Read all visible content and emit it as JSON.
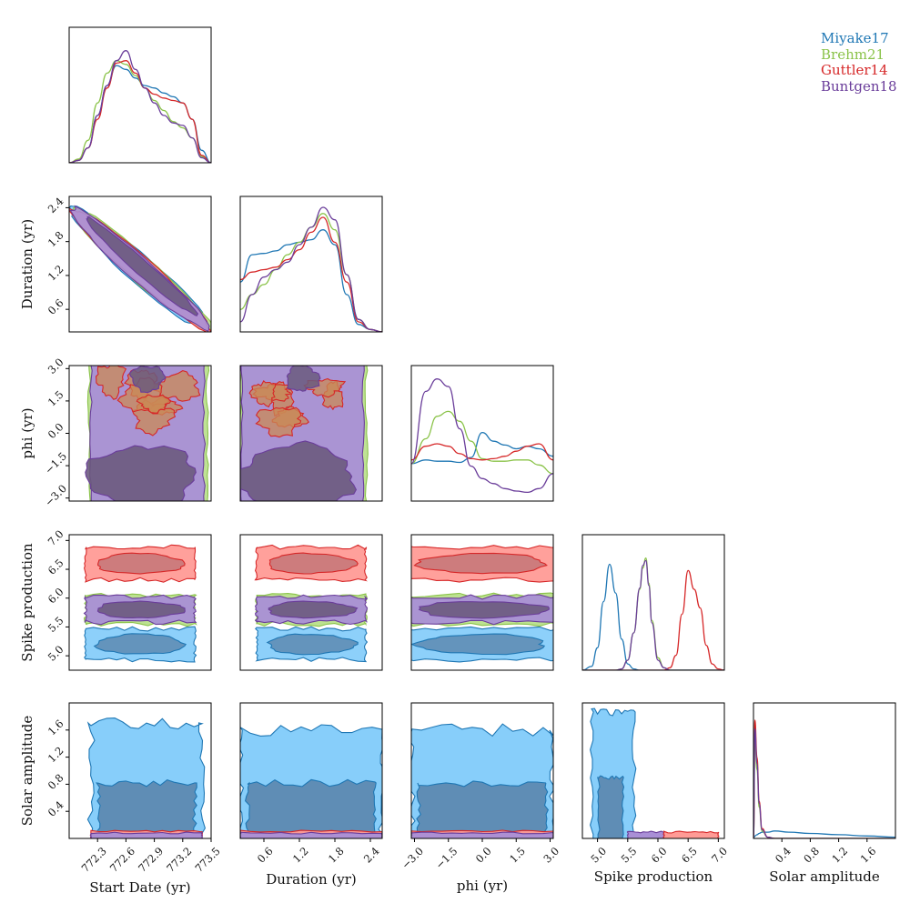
{
  "colors": {
    "Miyake17": "#1f77b4",
    "Brehm21": "#8bc34a",
    "Guttler14": "#d62728",
    "Buntgen18": "#6a3d9a",
    "fill_Miyake17_outer": "#87cefa",
    "fill_Miyake17_inner": "#5f8db5",
    "fill_Brehm21_outer": "#b8df8a",
    "fill_Guttler14_outer": "#ff9b96",
    "fill_Guttler14_inner": "#c8787a",
    "fill_Buntgen18_outer": "#a98fd6",
    "fill_Buntgen18_inner": "#6b5a7e",
    "orange_overlap": "#c98a55"
  },
  "chart_data": {
    "type": "corner",
    "parameters": [
      {
        "key": "start",
        "label": "Start Date (yr)",
        "range": [
          772.0,
          773.5
        ],
        "ticks": [
          "772.3",
          "772.6",
          "772.9",
          "773.2",
          "773.5"
        ],
        "tick_values": [
          772.3,
          772.6,
          772.9,
          773.2,
          773.5
        ]
      },
      {
        "key": "duration",
        "label": "Duration (yr)",
        "range": [
          0.2,
          2.6
        ],
        "ticks": [
          "0.6",
          "1.2",
          "1.8",
          "2.4"
        ],
        "tick_values": [
          0.6,
          1.2,
          1.8,
          2.4
        ]
      },
      {
        "key": "phi",
        "label": "phi (yr)",
        "range": [
          -3.14,
          3.14
        ],
        "ticks": [
          "−3.0",
          "−1.5",
          "0.0",
          "1.5",
          "3.0"
        ],
        "tick_values": [
          -3.0,
          -1.5,
          0.0,
          1.5,
          3.0
        ]
      },
      {
        "key": "spike",
        "label": "Spike production",
        "range": [
          4.75,
          7.1
        ],
        "ticks": [
          "5.0",
          "5.5",
          "6.0",
          "6.5",
          "7.0"
        ],
        "tick_values": [
          5.0,
          5.5,
          6.0,
          6.5,
          7.0
        ]
      },
      {
        "key": "solar",
        "label": "Solar amplitude",
        "range": [
          0.0,
          2.0
        ],
        "ticks": [
          "0.4",
          "0.8",
          "1.2",
          "1.6"
        ],
        "tick_values": [
          0.4,
          0.8,
          1.2,
          1.6
        ]
      }
    ],
    "series": [
      {
        "name": "Miyake17"
      },
      {
        "name": "Brehm21"
      },
      {
        "name": "Guttler14"
      },
      {
        "name": "Buntgen18"
      }
    ],
    "marginals": {
      "start": {
        "x": [
          772.0,
          772.1,
          772.2,
          772.3,
          772.4,
          772.5,
          772.6,
          772.7,
          772.8,
          772.9,
          773.0,
          773.1,
          773.2,
          773.3,
          773.4,
          773.5
        ],
        "Miyake17": [
          0.0,
          0.02,
          0.12,
          0.38,
          0.62,
          0.78,
          0.75,
          0.68,
          0.62,
          0.6,
          0.56,
          0.53,
          0.48,
          0.35,
          0.1,
          0.0
        ],
        "Brehm21": [
          0.0,
          0.03,
          0.18,
          0.48,
          0.72,
          0.82,
          0.79,
          0.7,
          0.6,
          0.5,
          0.42,
          0.33,
          0.28,
          0.2,
          0.05,
          0.0
        ],
        "Guttler14": [
          0.0,
          0.02,
          0.12,
          0.35,
          0.6,
          0.8,
          0.82,
          0.72,
          0.6,
          0.55,
          0.52,
          0.5,
          0.48,
          0.35,
          0.06,
          0.0
        ],
        "Buntgen18": [
          0.0,
          0.02,
          0.12,
          0.38,
          0.62,
          0.82,
          0.9,
          0.75,
          0.6,
          0.48,
          0.38,
          0.32,
          0.3,
          0.2,
          0.04,
          0.0
        ]
      },
      "duration": {
        "x": [
          0.2,
          0.4,
          0.6,
          0.8,
          1.0,
          1.2,
          1.4,
          1.6,
          1.8,
          2.0,
          2.2,
          2.4,
          2.6
        ],
        "Miyake17": [
          0.4,
          0.62,
          0.63,
          0.65,
          0.7,
          0.72,
          0.74,
          0.82,
          0.7,
          0.3,
          0.06,
          0.02,
          0.0
        ],
        "Brehm21": [
          0.18,
          0.3,
          0.38,
          0.5,
          0.62,
          0.72,
          0.84,
          0.95,
          0.82,
          0.46,
          0.1,
          0.02,
          0.0
        ],
        "Guttler14": [
          0.42,
          0.48,
          0.5,
          0.52,
          0.58,
          0.66,
          0.8,
          0.92,
          0.72,
          0.4,
          0.08,
          0.02,
          0.0
        ],
        "Buntgen18": [
          0.08,
          0.3,
          0.44,
          0.5,
          0.56,
          0.7,
          0.84,
          1.0,
          0.9,
          0.46,
          0.1,
          0.02,
          0.0
        ]
      },
      "phi": {
        "x": [
          -3.14,
          -2.5,
          -2.0,
          -1.5,
          -1.0,
          -0.5,
          0.0,
          0.5,
          1.0,
          1.5,
          2.0,
          2.5,
          3.14
        ],
        "Miyake17": [
          0.3,
          0.33,
          0.32,
          0.32,
          0.31,
          0.35,
          0.55,
          0.48,
          0.45,
          0.42,
          0.44,
          0.42,
          0.36
        ],
        "Brehm21": [
          0.3,
          0.5,
          0.68,
          0.72,
          0.64,
          0.48,
          0.34,
          0.32,
          0.32,
          0.33,
          0.33,
          0.29,
          0.22
        ],
        "Guttler14": [
          0.33,
          0.44,
          0.46,
          0.44,
          0.38,
          0.34,
          0.33,
          0.34,
          0.36,
          0.4,
          0.44,
          0.46,
          0.33
        ],
        "Buntgen18": [
          0.3,
          0.88,
          0.98,
          0.92,
          0.58,
          0.28,
          0.18,
          0.14,
          0.1,
          0.08,
          0.07,
          0.1,
          0.22
        ]
      },
      "spike": {
        "x": [
          4.75,
          4.9,
          5.0,
          5.1,
          5.2,
          5.3,
          5.4,
          5.5,
          5.6,
          5.7,
          5.75,
          5.8,
          5.85,
          5.9,
          6.0,
          6.1,
          6.2,
          6.3,
          6.4,
          6.5,
          6.6,
          6.7,
          6.8,
          6.9,
          7.0,
          7.1
        ],
        "Miyake17": [
          0.0,
          0.03,
          0.18,
          0.55,
          0.85,
          0.62,
          0.25,
          0.05,
          0.01,
          0.0,
          0.0,
          0.0,
          0.0,
          0.0,
          0.0,
          0.0,
          0.0,
          0.0,
          0.0,
          0.0,
          0.0,
          0.0,
          0.0,
          0.0,
          0.0,
          0.0
        ],
        "Brehm21": [
          0.0,
          0.0,
          0.0,
          0.0,
          0.0,
          0.0,
          0.01,
          0.08,
          0.3,
          0.65,
          0.82,
          0.9,
          0.7,
          0.4,
          0.1,
          0.02,
          0.0,
          0.0,
          0.0,
          0.0,
          0.0,
          0.0,
          0.0,
          0.0,
          0.0,
          0.0
        ],
        "Guttler14": [
          0.0,
          0.0,
          0.0,
          0.0,
          0.0,
          0.0,
          0.0,
          0.0,
          0.0,
          0.0,
          0.0,
          0.0,
          0.0,
          0.0,
          0.0,
          0.0,
          0.02,
          0.12,
          0.45,
          0.8,
          0.65,
          0.5,
          0.2,
          0.05,
          0.01,
          0.0
        ],
        "Buntgen18": [
          0.0,
          0.0,
          0.0,
          0.0,
          0.0,
          0.0,
          0.01,
          0.08,
          0.3,
          0.66,
          0.84,
          0.88,
          0.68,
          0.38,
          0.08,
          0.02,
          0.0,
          0.0,
          0.0,
          0.0,
          0.0,
          0.0,
          0.0,
          0.0,
          0.0,
          0.0
        ]
      },
      "solar": {
        "x": [
          0.0,
          0.02,
          0.05,
          0.08,
          0.12,
          0.2,
          0.3,
          0.5,
          0.8,
          1.2,
          1.6,
          2.0
        ],
        "Miyake17": [
          0.0,
          0.02,
          0.03,
          0.04,
          0.05,
          0.05,
          0.06,
          0.05,
          0.04,
          0.03,
          0.02,
          0.01
        ],
        "Brehm21": [
          0.0,
          0.8,
          0.55,
          0.25,
          0.06,
          0.01,
          0.0,
          0.0,
          0.0,
          0.0,
          0.0,
          0.0
        ],
        "Guttler14": [
          0.0,
          0.95,
          0.65,
          0.3,
          0.08,
          0.01,
          0.0,
          0.0,
          0.0,
          0.0,
          0.0,
          0.0
        ],
        "Buntgen18": [
          0.0,
          0.88,
          0.6,
          0.28,
          0.07,
          0.01,
          0.0,
          0.0,
          0.0,
          0.0,
          0.0,
          0.0
        ]
      }
    },
    "legend": {
      "entries": [
        "Miyake17",
        "Brehm21",
        "Guttler14",
        "Buntgen18"
      ],
      "placement": "top-right"
    },
    "grid": false
  }
}
